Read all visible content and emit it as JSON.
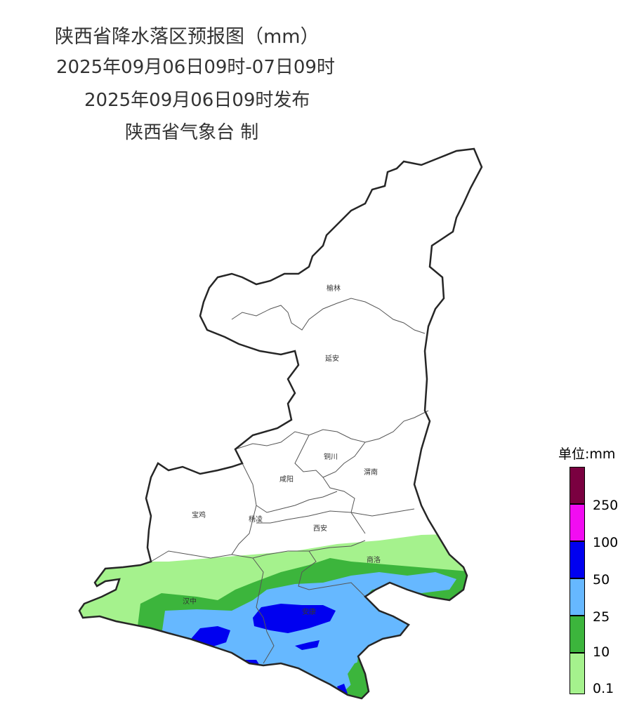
{
  "header": {
    "title": "陕西省降水落区预报图（mm）",
    "period": "2025年09月06日09时-07日09时",
    "issued": "2025年09月06日09时发布",
    "issuer": "陕西省气象台 制"
  },
  "cities": {
    "yulin": "榆林",
    "yanan": "延安",
    "tongchuan": "铜川",
    "xianyang": "咸阳",
    "weinan": "渭南",
    "baoji": "宝鸡",
    "yangling": "杨凌",
    "xian": "西安",
    "shangluo": "商洛",
    "hanzhong": "汉中",
    "ankang": "安康"
  },
  "legend": {
    "title": "单位:mm",
    "labels": [
      "250",
      "100",
      "50",
      "25",
      "10",
      "0.1"
    ],
    "colors": {
      "above_250": "#7a0040",
      "100_250": "#f20cf2",
      "50_100": "#0000f0",
      "25_50": "#66b8ff",
      "10_25": "#3cb53c",
      "0.1_10": "#a5f28d"
    }
  },
  "colors": {
    "border": "#262626",
    "city_boundary": "#555555"
  }
}
